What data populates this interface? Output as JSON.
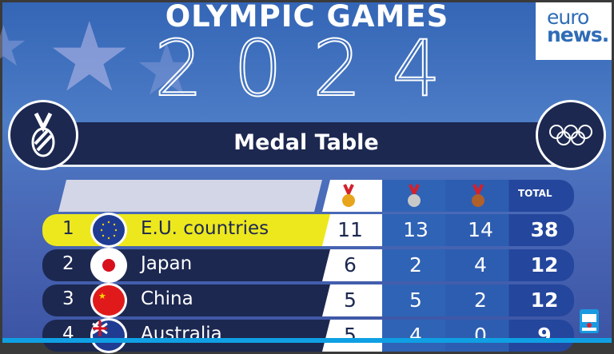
{
  "header": {
    "title": "OLYMPIC GAMES",
    "year": "2024",
    "logo_line1": "euro",
    "logo_line2": "news."
  },
  "banner": {
    "title": "Medal Table",
    "left_icon": "medal-icon",
    "right_icon": "olympic-rings-icon"
  },
  "table": {
    "columns": [
      "gold-medal-icon",
      "silver-medal-icon",
      "bronze-medal-icon",
      "TOTAL"
    ],
    "rows": [
      {
        "rank": "1",
        "country": "E.U. countries",
        "flag": "eu",
        "gold": "11",
        "silver": "13",
        "bronze": "14",
        "total": "38",
        "highlighted": true
      },
      {
        "rank": "2",
        "country": "Japan",
        "flag": "japan",
        "gold": "6",
        "silver": "2",
        "bronze": "4",
        "total": "12"
      },
      {
        "rank": "3",
        "country": "China",
        "flag": "china",
        "gold": "5",
        "silver": "5",
        "bronze": "2",
        "total": "12"
      },
      {
        "rank": "4",
        "country": "Australia",
        "flag": "australia",
        "gold": "5",
        "silver": "4",
        "bronze": "0",
        "total": "9"
      }
    ]
  },
  "colors": {
    "navy": "#1c2850",
    "highlight": "#ede81e",
    "gold": "#e8a41c",
    "silver": "#c8c8c8",
    "bronze": "#b0602a",
    "accent": "#0fa0e4"
  }
}
